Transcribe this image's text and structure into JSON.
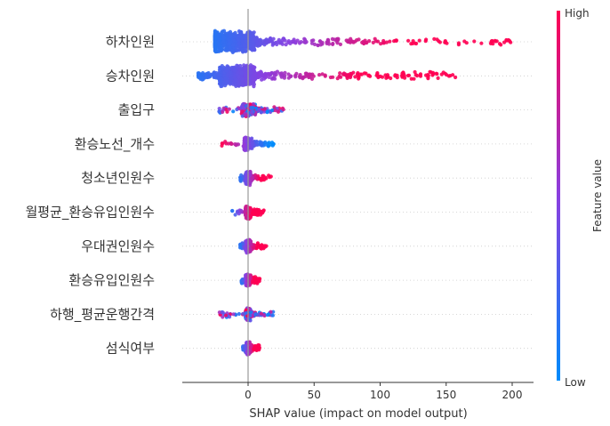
{
  "chart_data": {
    "type": "scatter",
    "xlabel": "SHAP value (impact on model output)",
    "xlim": [
      -50,
      215
    ],
    "xticks": [
      0,
      50,
      100,
      150,
      200
    ],
    "features": [
      {
        "name": "하차인원",
        "min": -25,
        "max": 205,
        "core": [
          -25,
          5
        ],
        "color_low_side": "low"
      },
      {
        "name": "승차인원",
        "min": -38,
        "max": 163,
        "core": [
          -22,
          5
        ],
        "color_low_side": "low"
      },
      {
        "name": "출입구",
        "min": -22,
        "max": 27,
        "core": [
          -5,
          6
        ],
        "color_low_side": "mixed"
      },
      {
        "name": "환승노선_개수",
        "min": -20,
        "max": 20,
        "core": [
          -3,
          3
        ],
        "color_low_side": "high"
      },
      {
        "name": "청소년인원수",
        "min": -6,
        "max": 18,
        "core": [
          -2,
          2
        ],
        "color_low_side": "low"
      },
      {
        "name": "월평균_환승유입인원수",
        "min": -12,
        "max": 12,
        "core": [
          -2,
          2
        ],
        "color_low_side": "low"
      },
      {
        "name": "우대권인원수",
        "min": -6,
        "max": 14,
        "core": [
          -2,
          2
        ],
        "color_low_side": "low"
      },
      {
        "name": "환승유입인원수",
        "min": -5,
        "max": 9,
        "core": [
          -2,
          2
        ],
        "color_low_side": "low"
      },
      {
        "name": "하행_평균운행간격",
        "min": -22,
        "max": 20,
        "core": [
          -2,
          2
        ],
        "color_low_side": "mixed"
      },
      {
        "name": "섬식여부",
        "min": -4,
        "max": 9,
        "core": [
          -2,
          2
        ],
        "color_low_side": "low"
      }
    ],
    "colorbar": {
      "label": "Feature value",
      "high_label": "High",
      "low_label": "Low",
      "high_color": "#ff0052",
      "low_color": "#008bfb"
    }
  }
}
